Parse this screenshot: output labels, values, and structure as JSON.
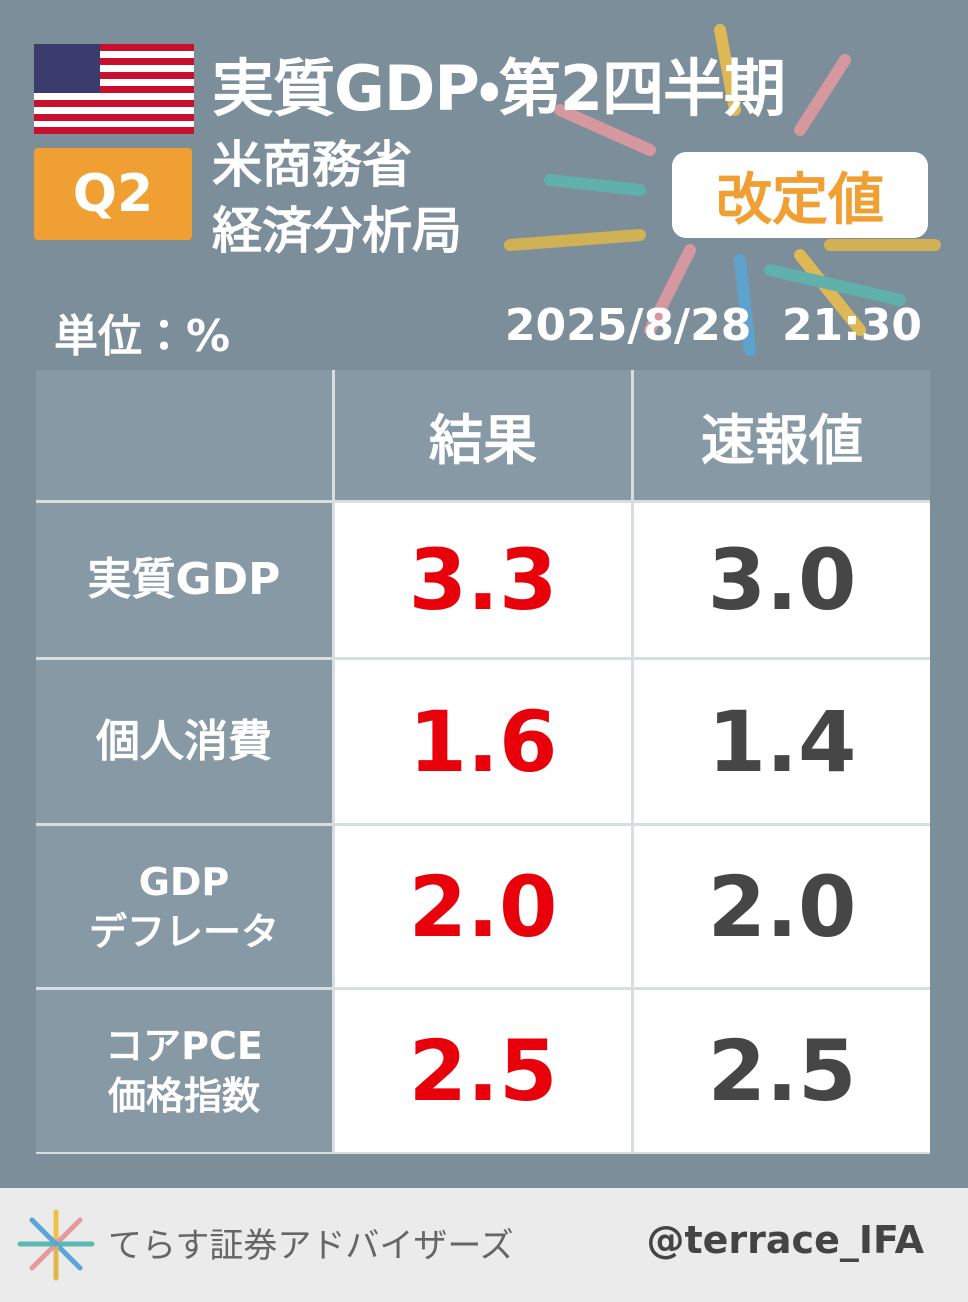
{
  "header": {
    "title": "実質GDP・第2四半期",
    "badge": "Q2",
    "source": [
      "米商務省",
      "経済分析局"
    ],
    "tag": "改定値",
    "unit": "単位：%",
    "datetime": "2025/8/28  21:30"
  },
  "table": {
    "columns": [
      "結果",
      "速報値"
    ],
    "rows": [
      {
        "label": [
          "実質GDP"
        ],
        "values": [
          "3.3",
          "3.0"
        ]
      },
      {
        "label": [
          "個人消費"
        ],
        "values": [
          "1.6",
          "1.4"
        ]
      },
      {
        "label": [
          "GDP",
          "デフレータ"
        ],
        "values": [
          "2.0",
          "2.0"
        ]
      },
      {
        "label": [
          "コアPCE",
          "価格指数"
        ],
        "values": [
          "2.5",
          "2.5"
        ]
      }
    ]
  },
  "footer": {
    "brand": "てらす証券アドバイザーズ",
    "handle": "@terrace_IFA"
  }
}
